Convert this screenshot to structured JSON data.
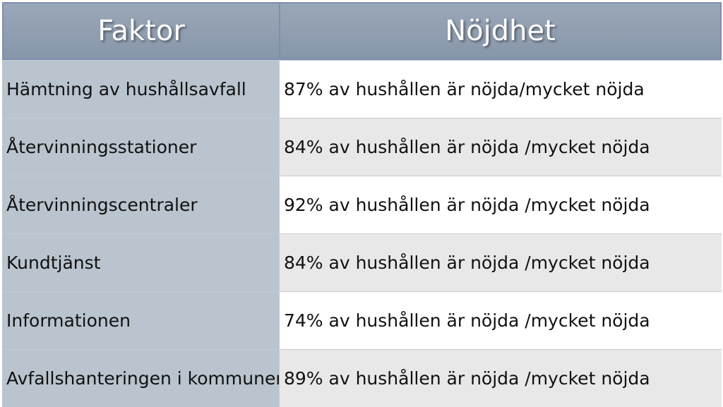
{
  "table": {
    "headers": [
      "Faktor",
      "Nöjdhet"
    ],
    "rows": [
      {
        "factor": "Hämtning av hushållsavfall",
        "satisfaction": "87% av hushållen är nöjda/mycket nöjda"
      },
      {
        "factor": "Återvinningsstationer",
        "satisfaction": "84% av hushållen är nöjda /mycket nöjda"
      },
      {
        "factor": "Återvinningscentraler",
        "satisfaction": "92% av hushållen är nöjda /mycket nöjda"
      },
      {
        "factor": "Kundtjänst",
        "satisfaction": "84% av hushållen är nöjda /mycket nöjda"
      },
      {
        "factor": "Informationen",
        "satisfaction": "74% av hushållen är nöjda /mycket nöjda"
      },
      {
        "factor": "Avfallshanteringen i kommunen",
        "satisfaction": "89% av hushållen är nöjda /mycket nöjda"
      }
    ]
  },
  "colors": {
    "header_bg": "#8e9bae",
    "factor_bg": "#b9c4ce",
    "row_alt_bg": "#e8e8e8",
    "row_bg": "#ffffff"
  }
}
